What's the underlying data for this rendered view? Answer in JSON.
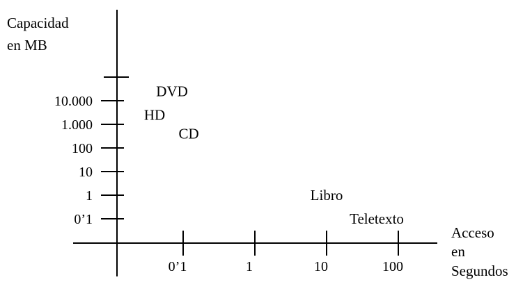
{
  "chart_data": {
    "type": "scatter",
    "title": "",
    "xlabel": [
      "Acceso",
      "en",
      "Segundos"
    ],
    "ylabel": [
      "Capacidad",
      "en MB"
    ],
    "x_scale": "log",
    "y_scale": "log",
    "x_ticks": [
      {
        "value": 0.1,
        "label": "0’1"
      },
      {
        "value": 1,
        "label": "1"
      },
      {
        "value": 10,
        "label": "10"
      },
      {
        "value": 100,
        "label": "100"
      }
    ],
    "y_ticks": [
      {
        "value": 0.1,
        "label": "0’1"
      },
      {
        "value": 1,
        "label": "1"
      },
      {
        "value": 10,
        "label": "10"
      },
      {
        "value": 100,
        "label": "100"
      },
      {
        "value": 1000,
        "label": "1.000"
      },
      {
        "value": 10000,
        "label": "10.000"
      },
      {
        "value": 100000,
        "label": ""
      }
    ],
    "points": [
      {
        "label": "DVD",
        "x": 0.07,
        "y": 25000
      },
      {
        "label": "HD",
        "x": 0.04,
        "y": 2500
      },
      {
        "label": "CD",
        "x": 0.12,
        "y": 400
      },
      {
        "label": "Libro",
        "x": 10,
        "y": 1
      },
      {
        "label": "Teletexto",
        "x": 50,
        "y": 0.1
      }
    ],
    "grid": false,
    "legend": "none"
  }
}
